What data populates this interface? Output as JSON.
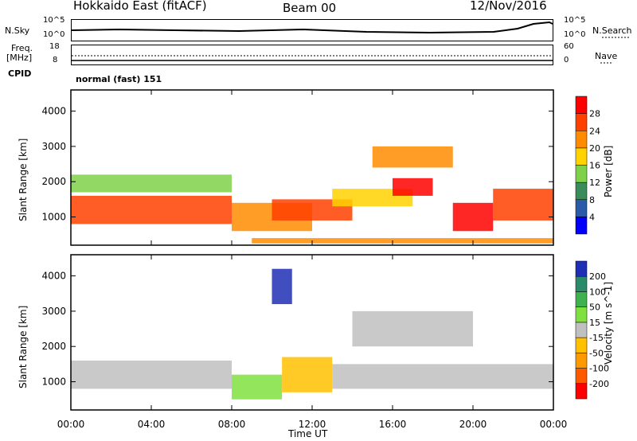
{
  "header": {
    "station": "Hokkaido East (fitACF)",
    "beam": "Beam 00",
    "date": "12/Nov/2016"
  },
  "side_labels": {
    "nsky": "N.Sky",
    "freq": "Freq.",
    "freq_unit": "[MHz]",
    "cpid": "CPID",
    "nsearch": "N.Search",
    "nave": "Nave",
    "cpid_value": "normal (fast) 151"
  },
  "mini_ticks": {
    "nsky_top": "10^5",
    "nsky_bot": "10^0",
    "freq_top": "18",
    "freq_bot": "8",
    "nave_top": "60",
    "nave_bot": "0"
  },
  "colors": {
    "power": [
      "#0000ff",
      "#2a5aa8",
      "#3a8c5a",
      "#7fd14a",
      "#ffd200",
      "#ff8c00",
      "#ff4000",
      "#ff0000"
    ],
    "velocity": [
      "#ff0000",
      "#ff5a00",
      "#ff9900",
      "#ffc000",
      "#c0c0c0",
      "#80e040",
      "#3fb24f",
      "#2a8a6a",
      "#1f2fb5"
    ],
    "ground": "#c0c0c0"
  },
  "chart_data": [
    {
      "type": "heatmap",
      "quantity": "power",
      "ylabel": "Slant Range [km]",
      "xlabel": "Time UT",
      "x_ticks": [
        "00:00",
        "04:00",
        "08:00",
        "12:00",
        "16:00",
        "20:00",
        "00:00"
      ],
      "y_ticks": [
        "1000",
        "2000",
        "3000",
        "4000"
      ],
      "ylim": [
        200,
        4600
      ],
      "xlim_hours": [
        0,
        24
      ],
      "colorbar": {
        "label": "Power [dB]",
        "ticks": [
          "4",
          "8",
          "12",
          "16",
          "20",
          "24",
          "28"
        ],
        "range": [
          0,
          32
        ]
      },
      "regions": [
        {
          "t0": 0,
          "t1": 8,
          "r0": 800,
          "r1": 1600,
          "level": 24
        },
        {
          "t0": 0,
          "t1": 8,
          "r0": 1700,
          "r1": 2200,
          "level": 14
        },
        {
          "t0": 8,
          "t1": 12,
          "r0": 600,
          "r1": 1400,
          "level": 22
        },
        {
          "t0": 10,
          "t1": 14,
          "r0": 900,
          "r1": 1500,
          "level": 26
        },
        {
          "t0": 13,
          "t1": 17,
          "r0": 1300,
          "r1": 1800,
          "level": 18
        },
        {
          "t0": 15,
          "t1": 19,
          "r0": 2400,
          "r1": 3000,
          "level": 20
        },
        {
          "t0": 16,
          "t1": 18,
          "r0": 1600,
          "r1": 2100,
          "level": 28
        },
        {
          "t0": 19,
          "t1": 21,
          "r0": 600,
          "r1": 1400,
          "level": 28
        },
        {
          "t0": 21,
          "t1": 24,
          "r0": 900,
          "r1": 1800,
          "level": 24
        },
        {
          "t0": 9,
          "t1": 24,
          "r0": 250,
          "r1": 400,
          "level": 20
        }
      ]
    },
    {
      "type": "heatmap",
      "quantity": "velocity",
      "ylabel": "Slant Range [km]",
      "xlabel": "Time UT",
      "x_ticks": [
        "00:00",
        "04:00",
        "08:00",
        "12:00",
        "16:00",
        "20:00",
        "00:00"
      ],
      "y_ticks": [
        "1000",
        "2000",
        "3000",
        "4000"
      ],
      "ylim": [
        200,
        4600
      ],
      "xlim_hours": [
        0,
        24
      ],
      "colorbar": {
        "label": "Velocity [m s^-1]",
        "ticks": [
          "200",
          "100",
          "50",
          "15",
          "-15",
          "-50",
          "-100",
          "-200"
        ],
        "range": [
          -250,
          250
        ]
      },
      "regions": [
        {
          "t0": 0,
          "t1": 8,
          "r0": 800,
          "r1": 1600,
          "level": 0
        },
        {
          "t0": 8,
          "t1": 10.5,
          "r0": 500,
          "r1": 1200,
          "level": 40
        },
        {
          "t0": 10.5,
          "t1": 13,
          "r0": 700,
          "r1": 1700,
          "level": -40
        },
        {
          "t0": 13,
          "t1": 24,
          "r0": 800,
          "r1": 1500,
          "level": 0
        },
        {
          "t0": 14,
          "t1": 20,
          "r0": 2000,
          "r1": 3000,
          "level": 0
        },
        {
          "t0": 10,
          "t1": 11,
          "r0": 3200,
          "r1": 4200,
          "level": 220
        }
      ]
    }
  ]
}
